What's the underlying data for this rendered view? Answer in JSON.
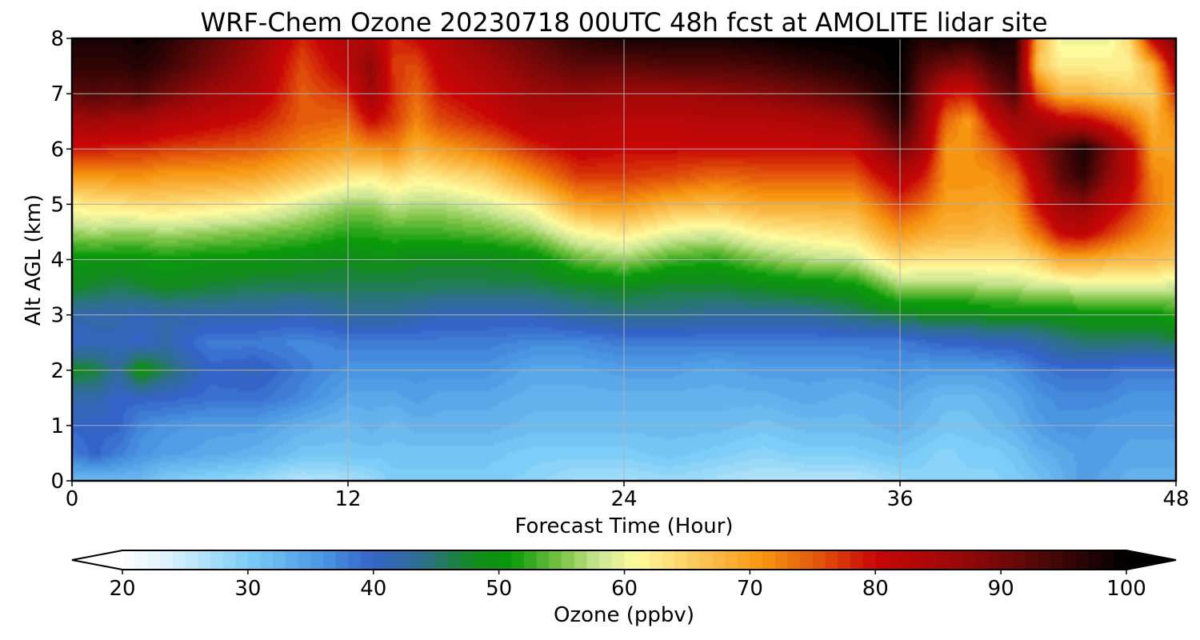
{
  "chart_data": {
    "type": "heatmap",
    "title": "WRF-Chem Ozone  20230718 00UTC 48h fcst at AMOLITE lidar site",
    "xlabel": "Forecast Time (Hour)",
    "ylabel": "Alt AGL (km)",
    "xlim": [
      0,
      48
    ],
    "ylim": [
      0,
      8
    ],
    "xticks": [
      0,
      12,
      24,
      36,
      48
    ],
    "yticks": [
      0,
      1,
      2,
      3,
      4,
      5,
      6,
      7,
      8
    ],
    "grid": true,
    "colorbar": {
      "label": "Ozone  (ppbv)",
      "range": [
        20,
        100
      ],
      "ticks": [
        20,
        30,
        40,
        50,
        60,
        70,
        80,
        90,
        100
      ],
      "extend": "both",
      "stops": [
        {
          "v": 20,
          "c": "#ffffff"
        },
        {
          "v": 24,
          "c": "#d8f0fc"
        },
        {
          "v": 30,
          "c": "#7ccdf7"
        },
        {
          "v": 36,
          "c": "#4a95e2"
        },
        {
          "v": 40,
          "c": "#3463c8"
        },
        {
          "v": 44,
          "c": "#2e6f8c"
        },
        {
          "v": 48,
          "c": "#128a1e"
        },
        {
          "v": 51,
          "c": "#0a9a0a"
        },
        {
          "v": 55,
          "c": "#7cc446"
        },
        {
          "v": 58,
          "c": "#cce694"
        },
        {
          "v": 61,
          "c": "#fefb9e"
        },
        {
          "v": 66,
          "c": "#fcc657"
        },
        {
          "v": 71,
          "c": "#f79510"
        },
        {
          "v": 76,
          "c": "#e04c0a"
        },
        {
          "v": 80,
          "c": "#c80606"
        },
        {
          "v": 86,
          "c": "#a00808"
        },
        {
          "v": 92,
          "c": "#5e0808"
        },
        {
          "v": 100,
          "c": "#000000"
        }
      ]
    },
    "profiles": {
      "times": [
        0,
        1,
        2,
        3,
        4,
        6,
        8,
        10,
        12,
        13,
        14,
        15,
        16,
        18,
        20,
        22,
        24,
        26,
        28,
        30,
        32,
        34,
        36,
        37,
        38,
        39,
        40,
        41,
        42,
        43,
        44,
        45,
        46,
        47,
        48
      ],
      "altitudes": [
        0,
        0.5,
        1,
        1.5,
        2,
        2.5,
        3,
        3.5,
        4,
        4.5,
        5,
        5.5,
        6,
        6.5,
        7,
        7.5,
        8
      ],
      "ozone": [
        [
          32,
          38,
          40,
          42,
          48,
          40,
          42,
          48,
          50,
          56,
          62,
          70,
          79,
          85,
          92,
          96,
          98
        ],
        [
          32,
          40,
          40,
          42,
          47,
          41,
          42,
          47,
          50,
          57,
          63,
          70,
          79,
          86,
          93,
          96,
          98
        ],
        [
          32,
          38,
          40,
          40,
          43,
          41,
          42,
          46,
          50,
          56,
          63,
          71,
          78,
          85,
          92,
          96,
          98
        ],
        [
          32,
          36,
          37,
          40,
          50,
          40,
          41,
          47,
          50,
          56,
          64,
          71,
          78,
          85,
          93,
          97,
          99
        ],
        [
          30,
          35,
          36,
          40,
          46,
          42,
          42,
          48,
          51,
          57,
          64,
          70,
          77,
          83,
          90,
          95,
          97
        ],
        [
          29,
          34,
          35,
          39,
          40,
          38,
          42,
          47,
          50,
          56,
          63,
          70,
          76,
          81,
          86,
          90,
          92
        ],
        [
          28,
          33,
          35,
          39,
          41,
          38,
          42,
          46,
          50,
          55,
          62,
          69,
          75,
          79,
          83,
          85,
          87
        ],
        [
          26,
          31,
          33,
          37,
          38,
          37,
          41,
          46,
          49,
          54,
          59,
          66,
          72,
          75,
          75,
          76,
          78
        ],
        [
          27,
          31,
          32,
          34,
          36,
          38,
          43,
          46,
          48,
          52,
          56,
          63,
          70,
          74,
          78,
          82,
          84
        ],
        [
          28,
          31,
          33,
          34,
          36,
          38,
          43,
          46,
          49,
          52,
          56,
          62,
          71,
          80,
          86,
          88,
          84
        ],
        [
          30,
          31,
          32,
          34,
          36,
          38,
          43,
          46,
          49,
          53,
          58,
          64,
          72,
          77,
          78,
          77,
          78
        ],
        [
          30,
          31,
          33,
          35,
          36,
          38,
          42,
          46,
          48,
          53,
          57,
          62,
          68,
          72,
          74,
          76,
          80
        ],
        [
          30,
          31,
          33,
          34,
          36,
          38,
          41,
          46,
          48,
          53,
          57,
          63,
          70,
          76,
          79,
          81,
          83
        ],
        [
          30,
          31,
          33,
          34,
          36,
          38,
          41,
          46,
          48,
          54,
          59,
          65,
          73,
          79,
          82,
          85,
          88
        ],
        [
          29,
          30,
          32,
          33,
          34,
          37,
          41,
          46,
          49,
          56,
          62,
          71,
          78,
          83,
          86,
          89,
          92
        ],
        [
          27,
          30,
          32,
          33,
          34,
          37,
          43,
          47,
          54,
          61,
          70,
          77,
          81,
          83,
          87,
          92,
          96
        ],
        [
          27,
          30,
          32,
          33,
          35,
          38,
          44,
          48,
          56,
          63,
          71,
          77,
          80,
          82,
          86,
          92,
          98
        ],
        [
          28,
          31,
          32,
          33,
          35,
          38,
          44,
          47,
          53,
          60,
          68,
          76,
          80,
          82,
          86,
          93,
          98
        ],
        [
          27,
          30,
          32,
          33,
          34,
          38,
          43,
          47,
          52,
          59,
          67,
          74,
          80,
          83,
          87,
          93,
          98
        ],
        [
          26,
          29,
          31,
          33,
          35,
          38,
          43,
          48,
          55,
          62,
          69,
          75,
          80,
          83,
          88,
          94,
          99
        ],
        [
          26,
          30,
          32,
          34,
          35,
          38,
          43,
          49,
          57,
          63,
          69,
          75,
          80,
          84,
          90,
          96,
          100
        ],
        [
          26,
          30,
          32,
          33,
          35,
          38,
          45,
          50,
          58,
          64,
          69,
          75,
          80,
          86,
          93,
          98,
          100
        ],
        [
          28,
          31,
          33,
          34,
          36,
          38,
          47,
          56,
          64,
          71,
          77,
          83,
          90,
          96,
          99,
          100,
          100
        ],
        [
          29,
          30,
          32,
          33,
          35,
          39,
          48,
          56,
          63,
          69,
          74,
          79,
          85,
          87,
          89,
          93,
          97
        ],
        [
          29,
          29,
          31,
          32,
          35,
          40,
          48,
          56,
          63,
          68,
          70,
          71,
          71,
          74,
          80,
          90,
          98
        ],
        [
          29,
          30,
          31,
          32,
          35,
          40,
          48,
          56,
          63,
          68,
          70,
          71,
          71,
          70,
          79,
          89,
          97
        ],
        [
          29,
          30,
          32,
          33,
          35,
          41,
          49,
          57,
          63,
          67,
          69,
          71,
          74,
          80,
          88,
          94,
          99
        ],
        [
          30,
          31,
          33,
          34,
          36,
          41,
          49,
          57,
          63,
          68,
          71,
          74,
          80,
          86,
          93,
          96,
          98
        ],
        [
          31,
          33,
          35,
          36,
          38,
          42,
          49,
          58,
          65,
          74,
          80,
          83,
          87,
          85,
          75,
          66,
          68
        ],
        [
          33,
          34,
          36,
          37,
          39,
          44,
          49,
          58,
          69,
          81,
          86,
          92,
          93,
          82,
          68,
          62,
          60
        ],
        [
          35,
          35,
          36,
          37,
          39,
          45,
          50,
          59,
          69,
          82,
          88,
          96,
          98,
          81,
          68,
          62,
          60
        ],
        [
          34,
          35,
          35,
          37,
          39,
          45,
          50,
          59,
          68,
          78,
          83,
          88,
          90,
          78,
          66,
          62,
          60
        ],
        [
          33,
          34,
          35,
          36,
          38,
          45,
          50,
          59,
          67,
          74,
          79,
          82,
          82,
          74,
          65,
          62,
          64
        ],
        [
          33,
          34,
          35,
          36,
          38,
          45,
          50,
          59,
          67,
          71,
          73,
          72,
          70,
          68,
          65,
          68,
          82
        ],
        [
          33,
          34,
          35,
          36,
          38,
          46,
          52,
          58,
          66,
          69,
          70,
          71,
          70,
          72,
          78,
          84,
          90
        ]
      ]
    }
  }
}
